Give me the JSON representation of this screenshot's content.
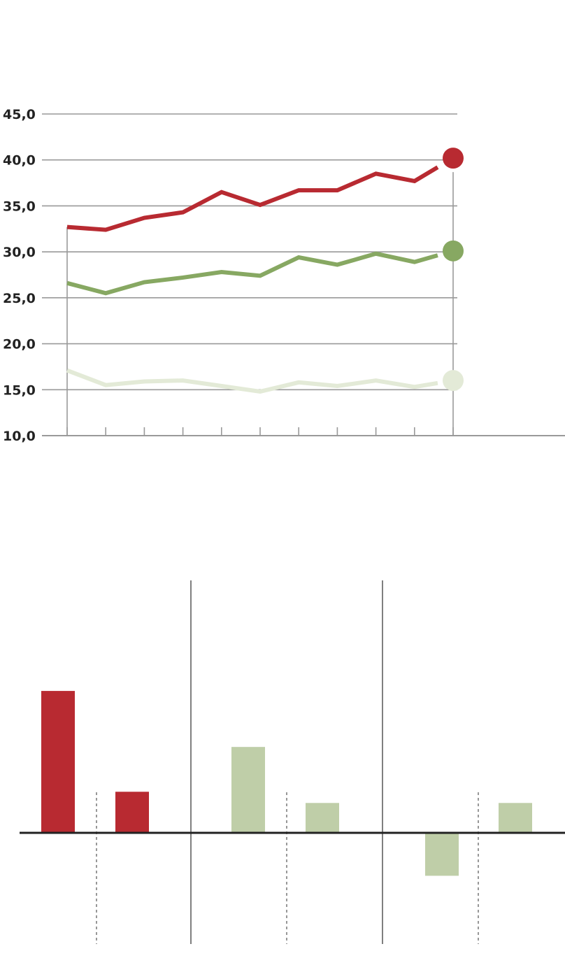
{
  "chart_data": [
    {
      "type": "line",
      "y_ticks": [
        "45,0",
        "40,0",
        "35,0",
        "30,0",
        "25,0",
        "20,0",
        "15,0",
        "10,0"
      ],
      "y_tick_values": [
        45,
        40,
        35,
        30,
        25,
        20,
        15,
        10
      ],
      "ylim": [
        10,
        45
      ],
      "x_count": 11,
      "grid": true,
      "series": [
        {
          "color": "#b82a31",
          "values": [
            32.7,
            32.4,
            33.7,
            34.3,
            36.5,
            35.1,
            36.7,
            36.7,
            38.5,
            37.7,
            40.2
          ]
        },
        {
          "color": "#87a862",
          "values": [
            26.6,
            25.5,
            26.7,
            27.2,
            27.8,
            27.4,
            29.4,
            28.6,
            29.8,
            28.9,
            30.1
          ]
        },
        {
          "color": "#e3ead7",
          "values": [
            17.1,
            15.5,
            15.9,
            16.0,
            15.4,
            14.8,
            15.8,
            15.4,
            16.0,
            15.3,
            16.0
          ]
        }
      ]
    },
    {
      "type": "bar",
      "groups": 3,
      "ylim": [
        -5,
        17
      ],
      "baseline": 0,
      "bars": [
        {
          "group": 0,
          "value": 7.6,
          "color": "#b82a31"
        },
        {
          "group": 0,
          "value": 2.2,
          "color": "#b82a31"
        },
        {
          "group": 1,
          "value": 4.6,
          "color": "#bfcea8"
        },
        {
          "group": 1,
          "value": 1.6,
          "color": "#bfcea8"
        },
        {
          "group": 2,
          "value": -2.3,
          "color": "#bfcea8"
        },
        {
          "group": 2,
          "value": 1.6,
          "color": "#bfcea8"
        }
      ]
    }
  ]
}
